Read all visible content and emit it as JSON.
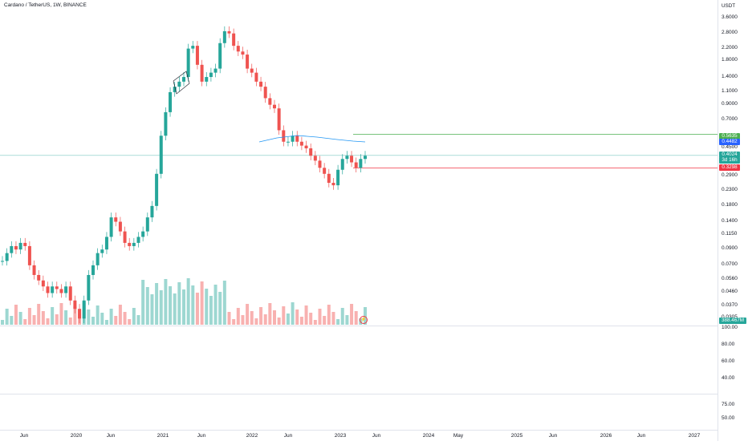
{
  "chart_header": {
    "title": "Cardano / TetherUS, 1W, BINANCE"
  },
  "price_axis": {
    "unit": "USDT",
    "ticks": [
      "3.6000",
      "2.8000",
      "2.2000",
      "1.8000",
      "1.4000",
      "1.1000",
      "0.9000",
      "0.7000",
      "0.4500",
      "0.2900",
      "0.2300",
      "0.1800",
      "0.1400",
      "0.1150",
      "0.0900",
      "0.0700",
      "0.0560",
      "0.0460",
      "0.0370",
      "0.0305"
    ],
    "tags": [
      {
        "label": "0.5635",
        "color": "#4caf50"
      },
      {
        "label": "0.4482",
        "color": "#2962ff"
      },
      {
        "label": "0.4024",
        "color": "#26a69a"
      },
      {
        "label": "3d 16h",
        "color": "#26a69a"
      },
      {
        "label": "0.3298",
        "color": "#f23645"
      },
      {
        "label": "388.467M",
        "color": "#26a69a"
      }
    ]
  },
  "indicator_pane_1": {
    "ticks": [
      "100.00",
      "80.00",
      "60.00",
      "40.00"
    ]
  },
  "indicator_pane_2": {
    "ticks": [
      "75.00",
      "50.00"
    ]
  },
  "time_axis": {
    "labels": [
      "Jun",
      "2020",
      "Jun",
      "2021",
      "Jun",
      "2022",
      "Jun",
      "2023",
      "Jun",
      "2024",
      "May",
      "2025",
      "Jun",
      "2026",
      "Jun",
      "2027"
    ]
  },
  "colors": {
    "up": "#26a69a",
    "down": "#ef5350",
    "ma_line": "#2196f3",
    "level_green": "#4caf50",
    "level_red": "#f23645",
    "level_current": "#26a69a"
  },
  "chart_data": {
    "type": "candlestick",
    "symbol": "Cardano / TetherUS",
    "interval": "1W",
    "exchange": "BINANCE",
    "y_scale": "log",
    "price_closes_approx": [
      0.075,
      0.085,
      0.095,
      0.09,
      0.1,
      0.095,
      0.07,
      0.06,
      0.055,
      0.05,
      0.045,
      0.05,
      0.048,
      0.045,
      0.05,
      0.04,
      0.035,
      0.03,
      0.04,
      0.06,
      0.07,
      0.085,
      0.09,
      0.11,
      0.15,
      0.14,
      0.12,
      0.1,
      0.095,
      0.1,
      0.11,
      0.12,
      0.15,
      0.18,
      0.3,
      0.55,
      0.8,
      1.1,
      1.2,
      1.3,
      1.4,
      2.2,
      2.3,
      1.7,
      1.3,
      1.4,
      1.5,
      1.6,
      2.4,
      2.9,
      2.8,
      2.3,
      2.1,
      2.0,
      1.6,
      1.5,
      1.3,
      1.2,
      1.0,
      0.9,
      0.85,
      0.6,
      0.5,
      0.5,
      0.55,
      0.5,
      0.47,
      0.45,
      0.4,
      0.37,
      0.33,
      0.3,
      0.26,
      0.25,
      0.32,
      0.38,
      0.4,
      0.36,
      0.33,
      0.38,
      0.4
    ],
    "current_price": "0.4024",
    "levels": {
      "resistance": "0.5635",
      "ma": "0.4482",
      "support": "0.3298"
    },
    "volume_last": "388.467M"
  }
}
